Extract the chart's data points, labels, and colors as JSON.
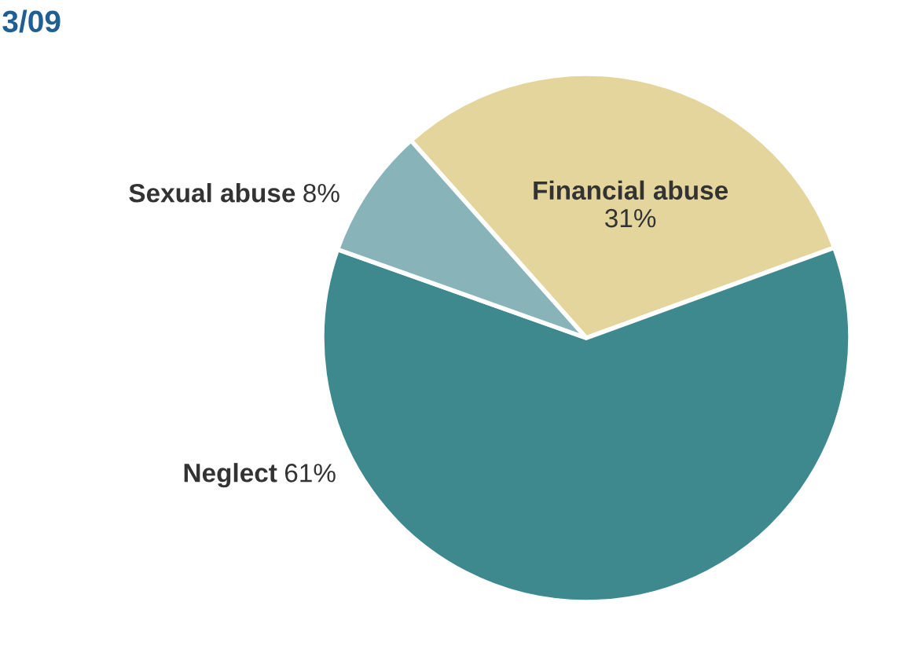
{
  "chart_data": {
    "type": "pie",
    "title": "3/09",
    "categories": [
      "Financial abuse",
      "Neglect",
      "Sexual abuse"
    ],
    "values": [
      31,
      61,
      8
    ],
    "value_labels": [
      "31%",
      "61%",
      "8%"
    ],
    "colors": [
      "#e3d59b",
      "#3d898e",
      "#88b3b8"
    ]
  }
}
